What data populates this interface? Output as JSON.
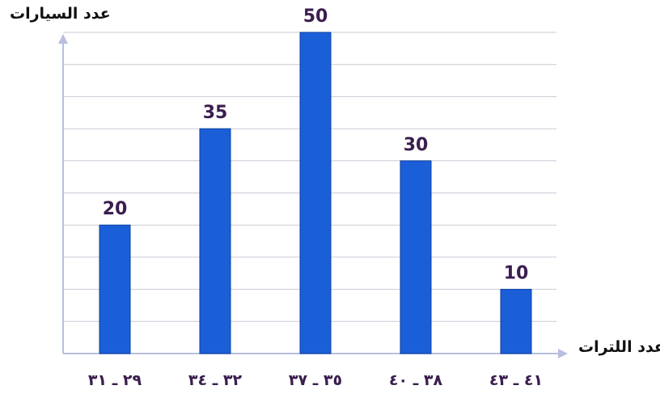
{
  "chart_data": {
    "type": "bar",
    "title": "",
    "ylabel": "عدد السيارات",
    "xlabel": "عدد اللترات",
    "categories": [
      "٢٩ ـ ٣١",
      "٣٢ ـ ٣٤",
      "٣٥ ـ ٣٧",
      "٣٨ ـ ٤٠",
      "٤١ ـ ٤٣"
    ],
    "values": [
      20,
      35,
      50,
      30,
      10
    ],
    "ylim": [
      0,
      50
    ],
    "grid": true,
    "colors": {
      "bar": "#1a5fd8",
      "bar_edge": "#0d3f9e",
      "value_label": "#3b1e4f",
      "tick_label": "#3b1e4f",
      "grid": "#c9cbd6",
      "axis": "#b8bfe0"
    }
  }
}
